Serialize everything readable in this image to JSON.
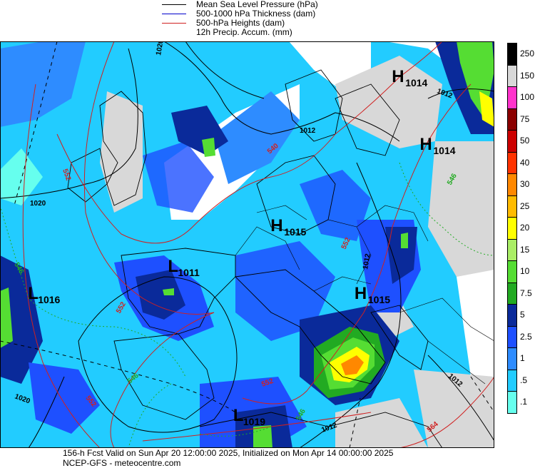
{
  "legend": {
    "mslp": "Mean Sea Level Pressure (hPa)",
    "thickness": "500-1000 hPa Thickness (dam)",
    "heights": "500-hPa Heights (dam)",
    "precip": "12h Precip. Accum. (mm)",
    "colors": {
      "mslp": "#000000",
      "thickness": "#0000cc",
      "heights": "#d02020"
    }
  },
  "colorbar": {
    "labels": [
      "250",
      "150",
      "100",
      "75",
      "50",
      "40",
      "30",
      "25",
      "20",
      "15",
      "10",
      "7.5",
      "5",
      "2.5",
      "1",
      ".5",
      ".1"
    ],
    "colors": [
      "#000000",
      "#d8d8d8",
      "#ff33cc",
      "#8b0000",
      "#cc0000",
      "#ff3300",
      "#ff8800",
      "#ffbb00",
      "#ffff00",
      "#aaee66",
      "#55dd33",
      "#22aa22",
      "#0a2a9a",
      "#1e50ff",
      "#2e8cff",
      "#22ccff",
      "#66ffee"
    ]
  },
  "map": {
    "pressure_centers": [
      {
        "letter": "H",
        "value": "1014",
        "lon": 20,
        "lat": 58
      },
      {
        "letter": "H",
        "value": "1014",
        "lon": 23,
        "lat": 53
      },
      {
        "letter": "H",
        "value": "1015",
        "lon": 7,
        "lat": 47
      },
      {
        "letter": "H",
        "value": "1015",
        "lon": 16,
        "lat": 42
      },
      {
        "letter": "L",
        "value": "1011",
        "lon": -4,
        "lat": 44
      },
      {
        "letter": "L",
        "value": "1016",
        "lon": -19,
        "lat": 42
      },
      {
        "letter": "L",
        "value": "1019",
        "lon": 3,
        "lat": 33
      }
    ],
    "isobar_labels": [
      "1020",
      "1020",
      "1012",
      "1012",
      "1012",
      "1012",
      "1020",
      "1012"
    ],
    "height_labels": [
      "552",
      "540",
      "552",
      "552",
      "552",
      "564",
      "552"
    ],
    "thickness_labels": [
      "546",
      "546",
      "546",
      "546"
    ]
  },
  "footer": {
    "line1": "156-h Fcst Valid on Sun Apr 20 12:00:00 2025, Initialized on Mon Apr 14 00:00:00 2025",
    "line2": "NCEP-GFS  - meteocentre.com"
  }
}
